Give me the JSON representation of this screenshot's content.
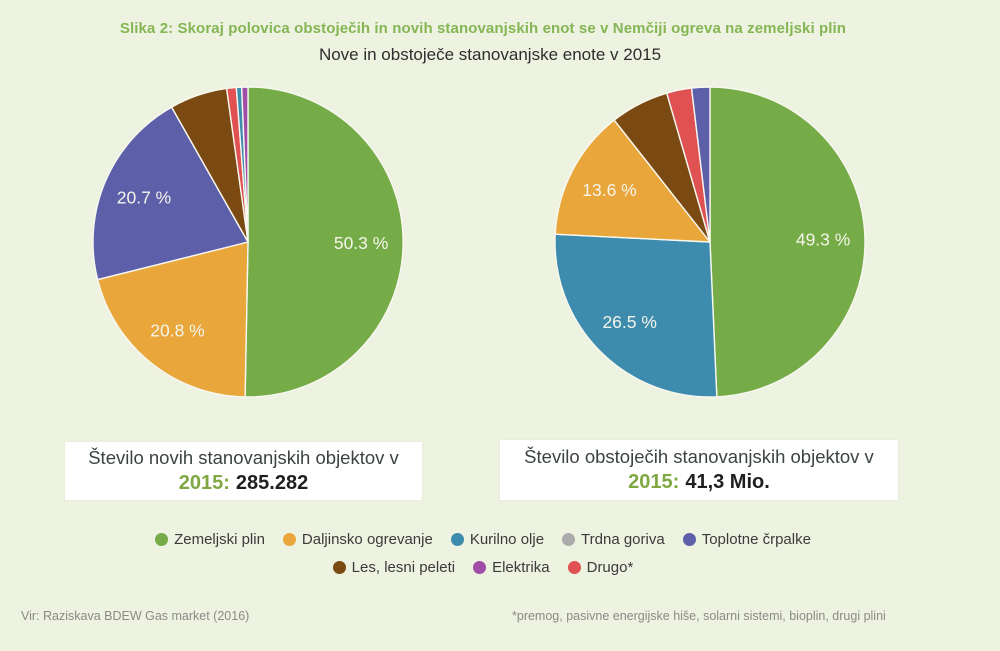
{
  "page": {
    "background": "#EDF2E1"
  },
  "header": {
    "title": "Slika 2: Skoraj polovica obstoječih in novih stanovanjskih enot se v Nemčiji ogreva na zemeljski plin",
    "subtitle": "Nove in obstoječe stanovanjske enote v 2015"
  },
  "palette": {
    "green": "#76AC47",
    "orange": "#E9A63B",
    "teal": "#3E8CAD",
    "gray": "#ABABAB",
    "indigo": "#5D60A9",
    "brown": "#7A4A12",
    "magenta": "#A04DA8",
    "red": "#E05152",
    "title_green": "#85B654",
    "year_green": "#7FA843",
    "slice_label": "#F5F5EB",
    "box_bg": "#FFFFFF",
    "text_dark": "#3C3C3C",
    "text_gray": "#8B8B85"
  },
  "chart_data": [
    {
      "type": "pie",
      "id": "new-dwellings",
      "start_angle_deg": 0,
      "direction": "clockwise",
      "caption_line1": "Število novih stanovanjskih objektov v",
      "caption_year": "2015:",
      "caption_value": "285.282",
      "slices": [
        {
          "label": "Zemeljski plin",
          "value": 50.3,
          "display": "50.3 %",
          "color": "green"
        },
        {
          "label": "Daljinsko ogrevanje",
          "value": 20.8,
          "display": "20.8 %",
          "color": "orange"
        },
        {
          "label": "Toplotne črpalke",
          "value": 20.7,
          "display": "20.7 %",
          "color": "indigo"
        },
        {
          "label": "Les, lesni peleti",
          "value": 6.0,
          "color": "brown"
        },
        {
          "label": "Drugo*",
          "value": 1.0,
          "color": "red"
        },
        {
          "label": "Kurilno olje",
          "value": 0.55,
          "color": "teal"
        },
        {
          "label": "Elektrika",
          "value": 0.65,
          "color": "magenta"
        }
      ]
    },
    {
      "type": "pie",
      "id": "existing-dwellings",
      "start_angle_deg": 0,
      "direction": "clockwise",
      "caption_line1": "Število obstoječih stanovanjskih objektov v",
      "caption_year": "2015:",
      "caption_value": "41,3 Mio.",
      "slices": [
        {
          "label": "Zemeljski plin",
          "value": 49.3,
          "display": "49.3 %",
          "color": "green"
        },
        {
          "label": "Kurilno olje",
          "value": 26.5,
          "display": "26.5 %",
          "color": "teal"
        },
        {
          "label": "Daljinsko ogrevanje",
          "value": 13.6,
          "display": "13.6 %",
          "color": "orange"
        },
        {
          "label": "Les, lesni peleti",
          "value": 6.1,
          "color": "brown"
        },
        {
          "label": "Drugo*",
          "value": 2.6,
          "color": "red"
        },
        {
          "label": "Toplotne črpalke",
          "value": 1.9,
          "color": "indigo"
        }
      ]
    }
  ],
  "legend": {
    "rows": [
      [
        {
          "label": "Zemeljski plin",
          "color": "green"
        },
        {
          "label": "Daljinsko ogrevanje",
          "color": "orange"
        },
        {
          "label": "Kurilno olje",
          "color": "teal"
        },
        {
          "label": "Trdna goriva",
          "color": "gray"
        },
        {
          "label": "Toplotne črpalke",
          "color": "indigo"
        }
      ],
      [
        {
          "label": "Les, lesni peleti",
          "color": "brown"
        },
        {
          "label": "Elektrika",
          "color": "magenta"
        },
        {
          "label": "Drugo*",
          "color": "red"
        }
      ]
    ]
  },
  "footer": {
    "source": "Vir: Raziskava BDEW Gas market (2016)",
    "note": "*premog, pasivne energijske hiše, solarni sistemi, bioplin, drugi plini"
  }
}
